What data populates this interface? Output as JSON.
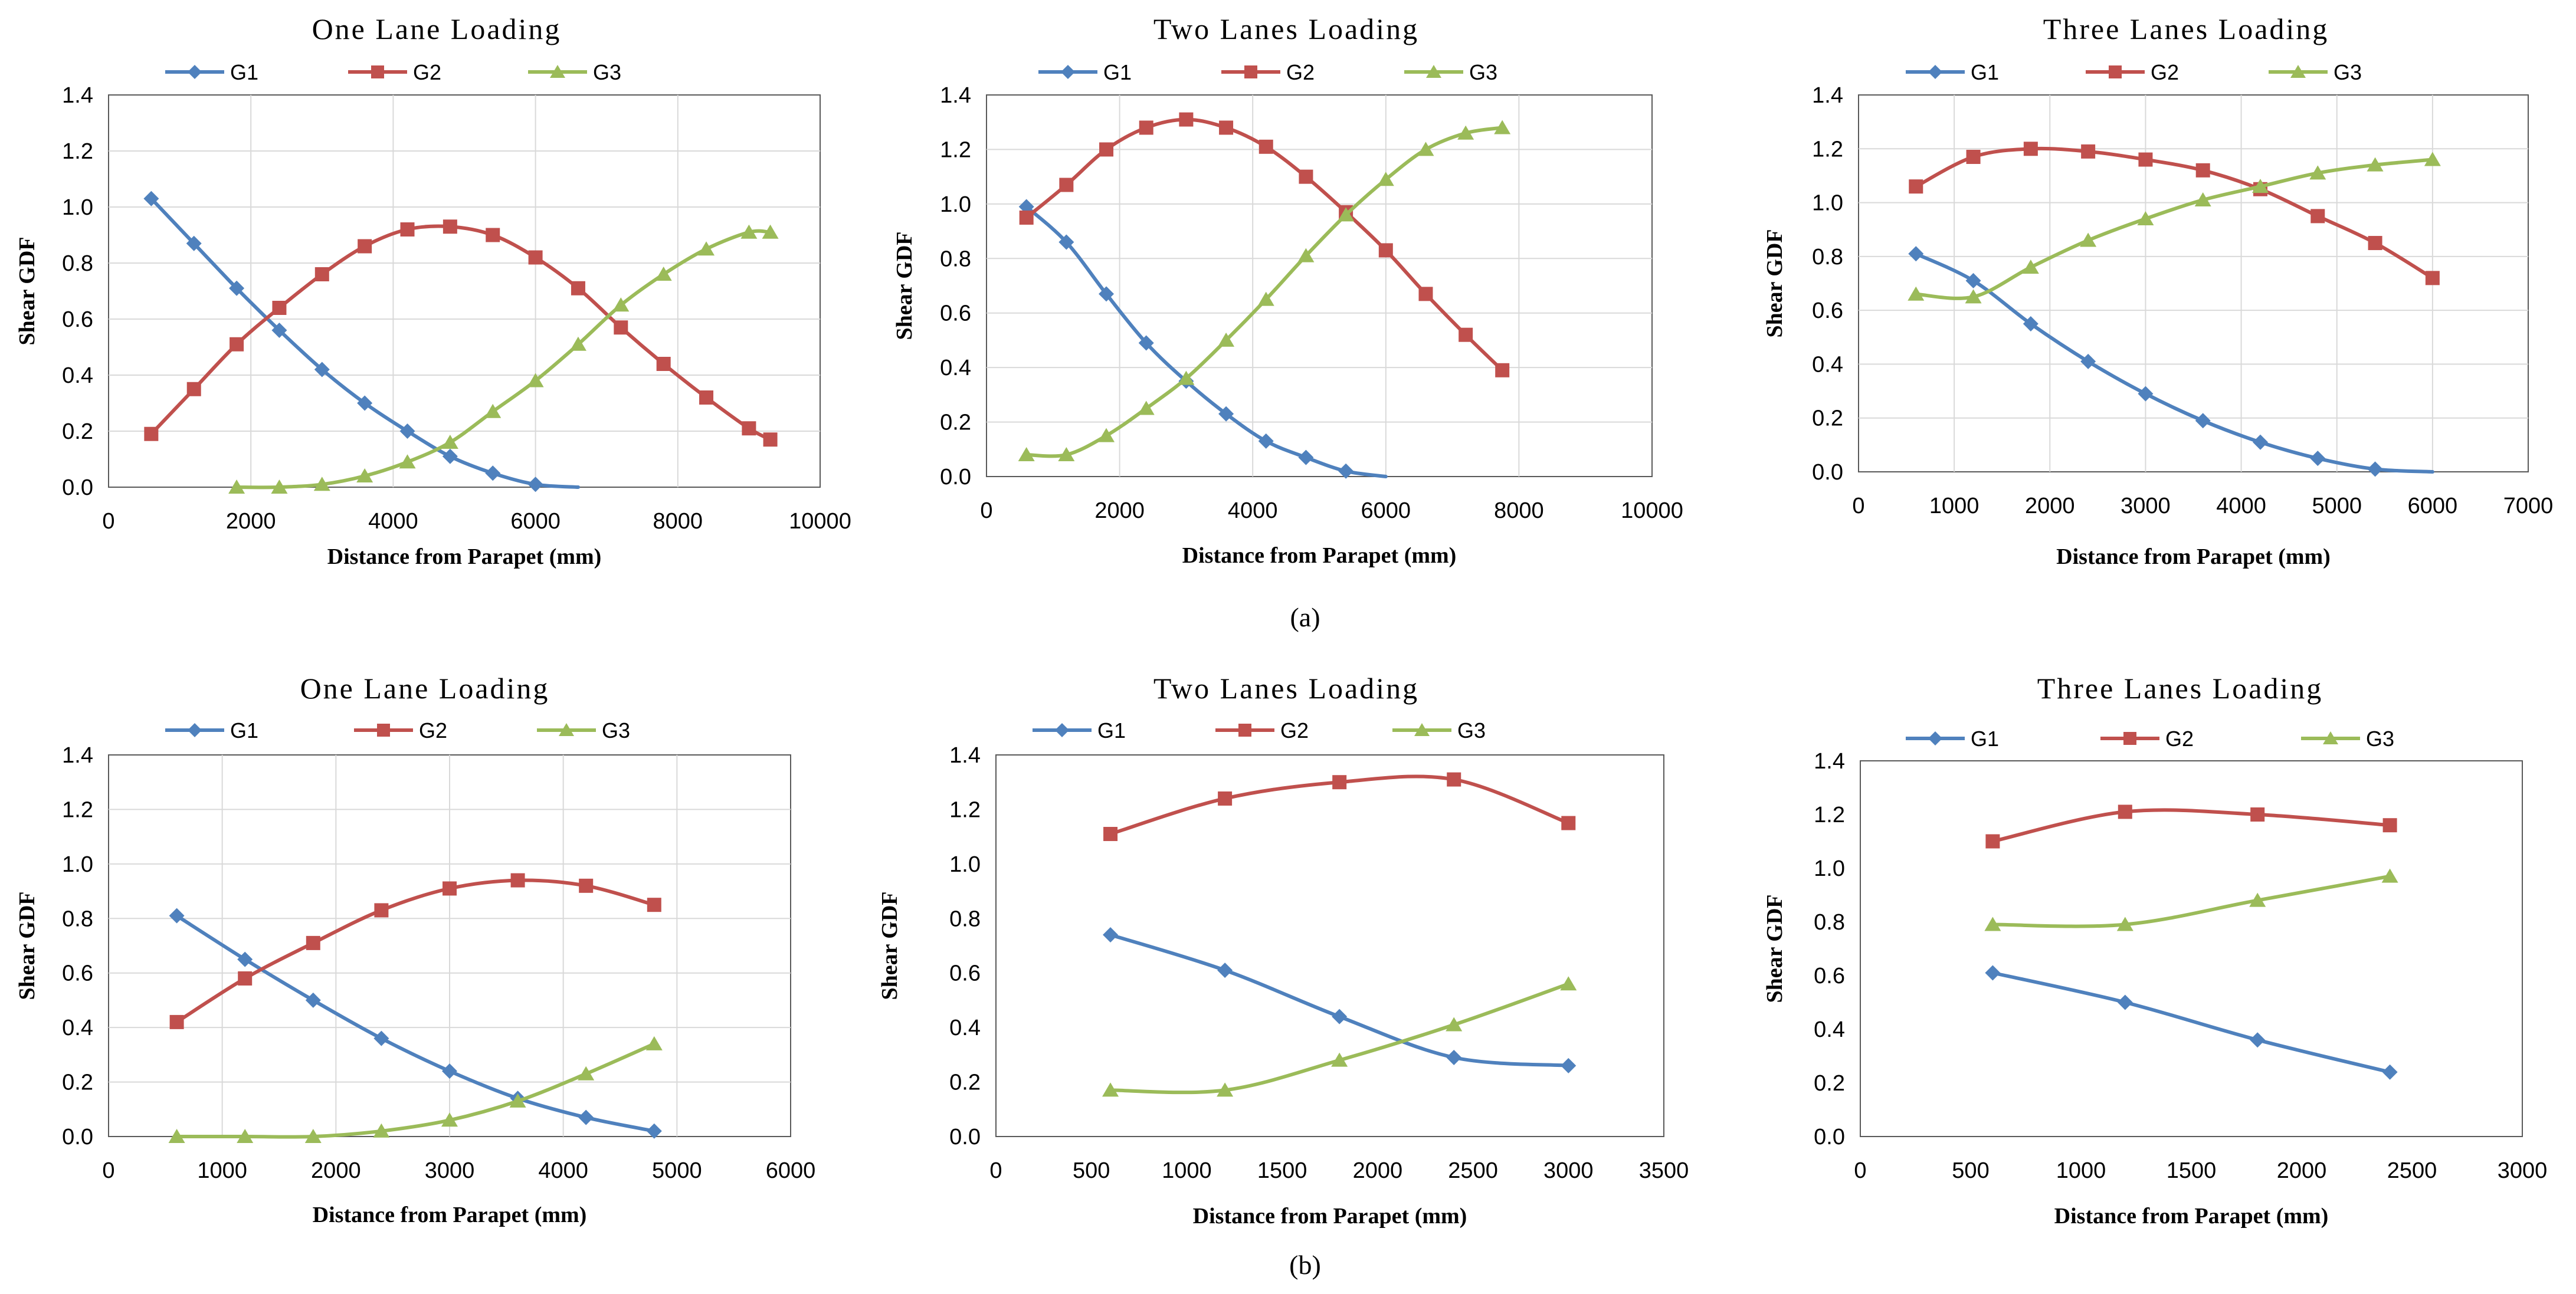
{
  "colors": {
    "G1": "#4F81BD",
    "G2": "#C0504D",
    "G3": "#9BBB59",
    "grid": "#D9D9D9",
    "axis": "#595959",
    "text": "#000000"
  },
  "captions": [
    "(a)",
    "(b)"
  ],
  "chart_data": [
    {
      "type": "line",
      "title": "One Lane Loading",
      "xlabel": "Distance from Parapet (mm)",
      "ylabel": "Shear GDF",
      "xlim": [
        0,
        10000
      ],
      "xstep": 2000,
      "ylim": [
        0,
        1.4
      ],
      "ystep": 0.2,
      "grid": true,
      "legend": "top",
      "series": [
        {
          "name": "G1",
          "marker": "diamond",
          "x": [
            600,
            1200,
            1800,
            2400,
            3000,
            3600,
            4200,
            4800,
            5400,
            6000,
            6600
          ],
          "y": [
            1.03,
            0.87,
            0.71,
            0.56,
            0.42,
            0.3,
            0.2,
            0.11,
            0.05,
            0.01,
            0.0
          ],
          "marker_count": 10
        },
        {
          "name": "G2",
          "marker": "square",
          "x": [
            600,
            1200,
            1800,
            2400,
            3000,
            3600,
            4200,
            4800,
            5400,
            6000,
            6600,
            7200,
            7800,
            8400,
            9000,
            9300
          ],
          "y": [
            0.19,
            0.35,
            0.51,
            0.64,
            0.76,
            0.86,
            0.92,
            0.93,
            0.9,
            0.82,
            0.71,
            0.57,
            0.44,
            0.32,
            0.21,
            0.17
          ],
          "marker_count": 16
        },
        {
          "name": "G3",
          "marker": "triangle",
          "x": [
            1800,
            2400,
            3000,
            3600,
            4200,
            4800,
            5400,
            6000,
            6600,
            7200,
            7800,
            8400,
            9000,
            9300
          ],
          "y": [
            0.0,
            0.0,
            0.01,
            0.04,
            0.09,
            0.16,
            0.27,
            0.38,
            0.51,
            0.65,
            0.76,
            0.85,
            0.91,
            0.91
          ],
          "marker_count": 14
        }
      ]
    },
    {
      "type": "line",
      "title": "Two Lanes Loading",
      "xlabel": "Distance from Parapet (mm)",
      "ylabel": "Shear GDF",
      "xlim": [
        0,
        10000
      ],
      "xstep": 2000,
      "ylim": [
        0,
        1.4
      ],
      "ystep": 0.2,
      "grid": true,
      "legend": "top",
      "series": [
        {
          "name": "G1",
          "marker": "diamond",
          "x": [
            600,
            1200,
            1800,
            2400,
            3000,
            3600,
            4200,
            4800,
            5400,
            6000
          ],
          "y": [
            0.99,
            0.86,
            0.67,
            0.49,
            0.35,
            0.23,
            0.13,
            0.07,
            0.02,
            0.0
          ],
          "marker_count": 9
        },
        {
          "name": "G2",
          "marker": "square",
          "x": [
            600,
            1200,
            1800,
            2400,
            3000,
            3600,
            4200,
            4800,
            5400,
            6000,
            6600,
            7200,
            7750
          ],
          "y": [
            0.95,
            1.07,
            1.2,
            1.28,
            1.31,
            1.28,
            1.21,
            1.1,
            0.97,
            0.83,
            0.67,
            0.52,
            0.39
          ],
          "marker_count": 13
        },
        {
          "name": "G3",
          "marker": "triangle",
          "x": [
            600,
            1200,
            1800,
            2400,
            3000,
            3600,
            4200,
            4800,
            5400,
            6000,
            6600,
            7200,
            7750
          ],
          "y": [
            0.08,
            0.08,
            0.15,
            0.25,
            0.36,
            0.5,
            0.65,
            0.81,
            0.96,
            1.09,
            1.2,
            1.26,
            1.28
          ],
          "marker_count": 13
        }
      ]
    },
    {
      "type": "line",
      "title": "Three Lanes Loading",
      "xlabel": "Distance from Parapet (mm)",
      "ylabel": "Shear GDF",
      "xlim": [
        0,
        7000
      ],
      "xstep": 1000,
      "ylim": [
        0,
        1.4
      ],
      "ystep": 0.2,
      "grid": true,
      "legend": "top",
      "series": [
        {
          "name": "G1",
          "marker": "diamond",
          "x": [
            600,
            1200,
            1800,
            2400,
            3000,
            3600,
            4200,
            4800,
            5400,
            6000
          ],
          "y": [
            0.81,
            0.71,
            0.55,
            0.41,
            0.29,
            0.19,
            0.11,
            0.05,
            0.01,
            0.0
          ],
          "marker_count": 9
        },
        {
          "name": "G2",
          "marker": "square",
          "x": [
            600,
            1200,
            1800,
            2400,
            3000,
            3600,
            4200,
            4800,
            5400,
            6000
          ],
          "y": [
            1.06,
            1.17,
            1.2,
            1.19,
            1.16,
            1.12,
            1.05,
            0.95,
            0.85,
            0.72
          ],
          "marker_count": 10
        },
        {
          "name": "G3",
          "marker": "triangle",
          "x": [
            600,
            1200,
            1800,
            2400,
            3000,
            3600,
            4200,
            4800,
            5400,
            6000
          ],
          "y": [
            0.66,
            0.65,
            0.76,
            0.86,
            0.94,
            1.01,
            1.06,
            1.11,
            1.14,
            1.16
          ],
          "marker_count": 10
        }
      ]
    },
    {
      "type": "line",
      "title": "One Lane Loading",
      "xlabel": "Distance from Parapet (mm)",
      "ylabel": "Shear GDF",
      "xlim": [
        0,
        6000
      ],
      "xstep": 1000,
      "ylim": [
        0,
        1.4
      ],
      "ystep": 0.2,
      "grid": true,
      "legend": "top",
      "series": [
        {
          "name": "G1",
          "marker": "diamond",
          "x": [
            600,
            1200,
            1800,
            2400,
            3000,
            3600,
            4200,
            4800
          ],
          "y": [
            0.81,
            0.65,
            0.5,
            0.36,
            0.24,
            0.14,
            0.07,
            0.02
          ],
          "marker_count": 8
        },
        {
          "name": "G2",
          "marker": "square",
          "x": [
            600,
            1200,
            1800,
            2400,
            3000,
            3600,
            4200,
            4800
          ],
          "y": [
            0.42,
            0.58,
            0.71,
            0.83,
            0.91,
            0.94,
            0.92,
            0.85
          ],
          "marker_count": 8
        },
        {
          "name": "G3",
          "marker": "triangle",
          "x": [
            600,
            1200,
            1800,
            2400,
            3000,
            3600,
            4200,
            4800
          ],
          "y": [
            0.0,
            0.0,
            0.0,
            0.02,
            0.06,
            0.13,
            0.23,
            0.34
          ],
          "marker_count": 8
        }
      ]
    },
    {
      "type": "line",
      "title": "Two Lanes Loading",
      "xlabel": "Distance from Parapet (mm)",
      "ylabel": "Shear GDF",
      "xlim": [
        0,
        3500
      ],
      "xstep": 500,
      "ylim": [
        0,
        1.4
      ],
      "ystep": 0.2,
      "grid": false,
      "legend": "top",
      "series": [
        {
          "name": "G1",
          "marker": "diamond",
          "x": [
            600,
            1200,
            1800,
            2400,
            3000
          ],
          "y": [
            0.74,
            0.61,
            0.44,
            0.29,
            0.26
          ],
          "marker_count": 5
        },
        {
          "name": "G2",
          "marker": "square",
          "x": [
            600,
            1200,
            1800,
            2400,
            3000
          ],
          "y": [
            1.11,
            1.24,
            1.3,
            1.31,
            1.15
          ],
          "marker_count": 5
        },
        {
          "name": "G3",
          "marker": "triangle",
          "x": [
            600,
            1200,
            1800,
            2400,
            3000
          ],
          "y": [
            0.17,
            0.17,
            0.28,
            0.41,
            0.56
          ],
          "marker_count": 5
        }
      ]
    },
    {
      "type": "line",
      "title": "Three Lanes Loading",
      "xlabel": "Distance from Parapet (mm)",
      "ylabel": "Shear GDF",
      "xlim": [
        0,
        3000
      ],
      "xstep": 500,
      "ylim": [
        0,
        1.4
      ],
      "ystep": 0.2,
      "grid": false,
      "legend": "top",
      "series": [
        {
          "name": "G1",
          "marker": "diamond",
          "x": [
            600,
            1200,
            1800,
            2400
          ],
          "y": [
            0.61,
            0.5,
            0.36,
            0.24
          ],
          "marker_count": 4
        },
        {
          "name": "G2",
          "marker": "square",
          "x": [
            600,
            1200,
            1800,
            2400
          ],
          "y": [
            1.1,
            1.21,
            1.2,
            1.16
          ],
          "marker_count": 4
        },
        {
          "name": "G3",
          "marker": "triangle",
          "x": [
            600,
            1200,
            1800,
            2400
          ],
          "y": [
            0.79,
            0.79,
            0.88,
            0.97
          ],
          "marker_count": 4
        }
      ]
    }
  ]
}
